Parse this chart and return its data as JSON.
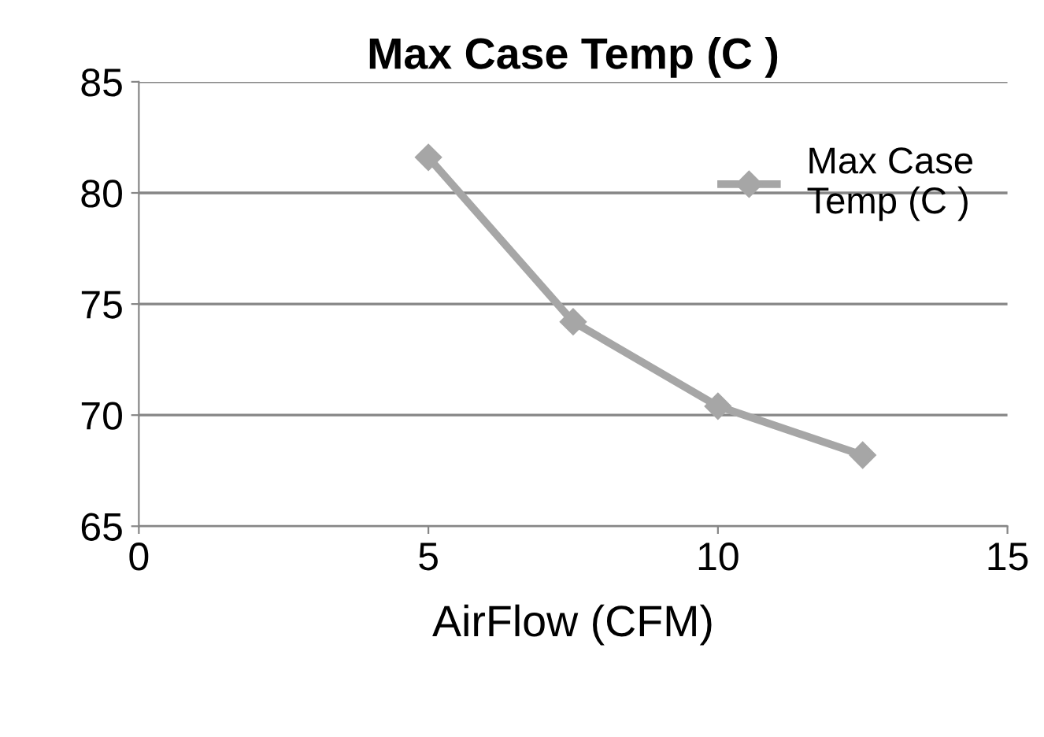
{
  "chart_data": {
    "type": "line",
    "title": "Max Case Temp (C )",
    "xlabel": "AirFlow (CFM)",
    "x": [
      5,
      7.5,
      10,
      12.5
    ],
    "series": [
      {
        "name": "Max Case\nTemp (C )",
        "color": "#a6a6a6",
        "values": [
          81.6,
          74.2,
          70.4,
          68.2
        ]
      }
    ],
    "xlim": [
      0,
      15
    ],
    "xticks": [
      0,
      5,
      10,
      15
    ],
    "ylim": [
      65,
      85
    ],
    "yticks": [
      65,
      70,
      75,
      80,
      85
    ],
    "grid": "y",
    "legend": "top right",
    "marker": "diamond",
    "line_style": "solid"
  }
}
